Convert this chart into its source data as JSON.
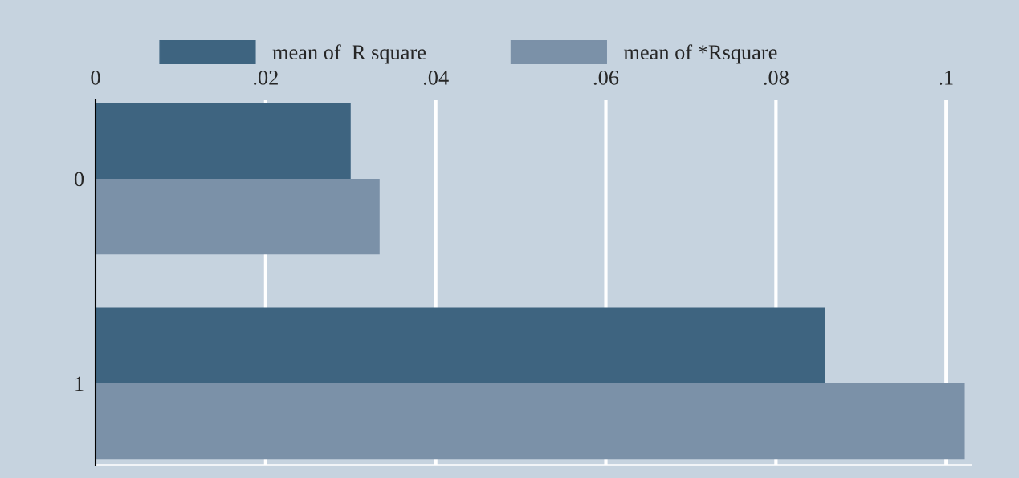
{
  "chart_data": {
    "type": "bar",
    "orientation": "horizontal",
    "categories": [
      "0",
      "1"
    ],
    "series": [
      {
        "name": "mean of  R square",
        "color": "#3e6480",
        "values": [
          0.03,
          0.0858
        ]
      },
      {
        "name": "mean of *Rsquare",
        "color": "#7b91a8",
        "values": [
          0.0334,
          0.1022
        ]
      }
    ],
    "xlim": [
      0,
      0.103
    ],
    "xticks": [
      {
        "value": 0,
        "label": "0"
      },
      {
        "value": 0.02,
        "label": ".02"
      },
      {
        "value": 0.04,
        "label": ".04"
      },
      {
        "value": 0.06,
        "label": ".06"
      },
      {
        "value": 0.08,
        "label": ".08"
      },
      {
        "value": 0.1,
        "label": ".1"
      }
    ],
    "grid": "x",
    "legend": "top"
  }
}
